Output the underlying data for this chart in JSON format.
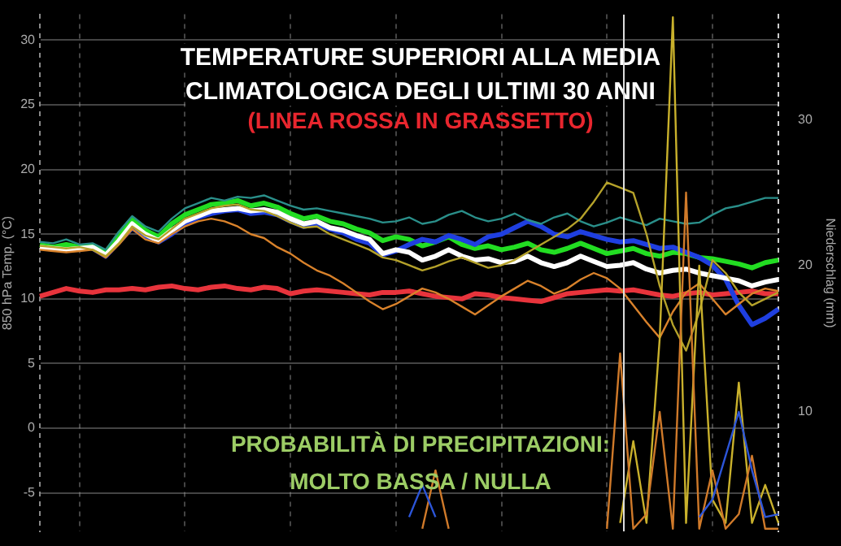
{
  "chart_data": {
    "type": "line",
    "title": "TEMPERATURE SUPERIORI ALLA MEDIA\nCLIMATOLOGICA DEGLI ULTIMI 30 ANNI",
    "subtitle": "(LINEA ROSSA IN GRASSETTO)",
    "annotations": [
      "PROBABILITÀ DI PRECIPITAZIONI:\nMOLTO BASSA / NULLA"
    ],
    "ylabel": "850 hPa Temp. (°C)",
    "y2label": "Niederschlag (mm)",
    "categories": [
      null,
      null,
      null,
      null,
      null,
      null,
      null,
      null,
      null,
      null,
      null,
      null,
      null,
      null,
      null,
      null,
      null,
      null,
      null,
      null,
      null,
      null,
      null,
      null,
      null,
      null,
      null,
      null,
      null,
      null,
      null,
      null,
      null,
      null,
      null,
      null,
      null,
      null,
      null,
      null,
      null,
      null,
      null,
      null,
      null,
      null,
      null,
      null,
      null,
      null,
      null,
      null,
      null,
      null,
      null,
      null,
      null
    ],
    "ylim": [
      -8,
      32
    ],
    "yticks": [
      -5,
      0,
      5,
      10,
      15,
      20,
      25,
      30
    ],
    "y2lim": [
      1.8,
      37.2
    ],
    "y2ticks": [
      10,
      20,
      30
    ],
    "grid": true,
    "legend": false,
    "marker": "none",
    "series": [
      {
        "color": "#e8343c",
        "values": [
          10.2,
          10.5,
          10.8,
          10.6,
          10.5,
          10.7,
          10.7,
          10.8,
          10.7,
          10.9,
          11.0,
          10.8,
          10.7,
          10.9,
          11.0,
          10.8,
          10.7,
          10.9,
          10.8,
          10.4,
          10.6,
          10.7,
          10.6,
          10.5,
          10.4,
          10.3,
          10.5,
          10.5,
          10.6,
          10.4,
          10.2,
          10.1,
          10.0,
          10.4,
          10.3,
          10.1,
          10.0,
          9.9,
          9.8,
          10.1,
          10.4,
          10.5,
          10.6,
          10.7,
          10.6,
          10.7,
          10.5,
          10.3,
          10.2,
          10.4,
          10.5,
          10.3,
          10.4,
          10.5,
          10.6,
          10.4,
          10.4
        ]
      },
      {
        "color": "#22dd22",
        "values": [
          14.2,
          14.0,
          14.2,
          14.0,
          14.1,
          13.6,
          15.0,
          16.2,
          15.3,
          14.8,
          15.8,
          16.5,
          16.9,
          17.3,
          17.4,
          17.6,
          17.2,
          17.4,
          17.1,
          16.6,
          16.2,
          16.4,
          16.0,
          15.8,
          15.4,
          15.1,
          14.5,
          14.8,
          14.6,
          14.1,
          14.4,
          14.8,
          14.2,
          13.9,
          14.1,
          13.8,
          14.0,
          14.3,
          13.8,
          13.6,
          13.9,
          14.3,
          13.9,
          13.5,
          13.7,
          13.9,
          13.5,
          13.3,
          13.6,
          13.5,
          13.2,
          13.1,
          12.9,
          12.7,
          12.4,
          12.8,
          13.0
        ]
      },
      {
        "color": "#1f3fe0",
        "values": [
          null,
          null,
          null,
          null,
          13.9,
          13.3,
          14.4,
          15.5,
          14.8,
          14.4,
          15.0,
          15.8,
          16.3,
          16.6,
          16.8,
          16.9,
          16.6,
          16.7,
          16.5,
          16.0,
          15.6,
          15.8,
          15.4,
          15.1,
          14.6,
          14.3,
          13.4,
          13.7,
          14.2,
          14.6,
          14.4,
          14.9,
          14.6,
          14.2,
          14.8,
          15.0,
          15.5,
          16.0,
          15.6,
          15.0,
          14.8,
          15.2,
          14.9,
          14.6,
          14.4,
          14.5,
          14.2,
          13.9,
          14.0,
          13.6,
          13.2,
          12.6,
          11.5,
          9.5,
          8.0,
          8.5,
          9.2
        ]
      },
      {
        "color": "#ffffff",
        "values": [
          14.0,
          13.9,
          13.8,
          13.9,
          14.0,
          13.4,
          14.5,
          15.8,
          15.0,
          14.5,
          15.3,
          16.0,
          16.4,
          16.8,
          16.9,
          17.0,
          16.8,
          16.9,
          16.7,
          16.2,
          15.8,
          16.0,
          15.5,
          15.3,
          14.9,
          14.6,
          13.5,
          13.8,
          13.6,
          13.0,
          13.3,
          13.8,
          13.3,
          13.0,
          13.1,
          12.8,
          12.9,
          13.3,
          12.8,
          12.5,
          12.8,
          13.3,
          12.9,
          12.5,
          12.6,
          12.8,
          12.3,
          12.0,
          12.2,
          12.3,
          12.0,
          11.8,
          11.6,
          11.4,
          11.0,
          11.3,
          11.5
        ]
      },
      {
        "color": "#d9822b",
        "values": [
          13.8,
          13.7,
          13.6,
          13.7,
          13.8,
          13.2,
          14.2,
          15.4,
          14.6,
          14.3,
          15.0,
          15.6,
          16.0,
          16.2,
          16.0,
          15.6,
          15.0,
          14.7,
          14.0,
          13.5,
          12.8,
          12.2,
          11.8,
          11.2,
          10.5,
          9.8,
          9.2,
          9.6,
          10.2,
          10.8,
          10.5,
          10.0,
          9.4,
          8.8,
          9.5,
          10.2,
          10.8,
          11.4,
          11.0,
          10.4,
          10.8,
          11.5,
          12.0,
          11.6,
          10.8,
          9.5,
          8.2,
          7.0,
          9.0,
          10.5,
          11.2,
          10.0,
          8.8,
          9.6,
          10.4,
          10.8,
          10.6
        ]
      },
      {
        "color": "#2a8f8a",
        "values": [
          14.4,
          14.3,
          14.6,
          14.2,
          14.3,
          13.8,
          15.2,
          16.4,
          15.6,
          15.2,
          16.2,
          17.0,
          17.4,
          17.8,
          17.6,
          17.9,
          17.8,
          18.0,
          17.6,
          17.2,
          16.9,
          17.0,
          16.8,
          16.6,
          16.4,
          16.2,
          15.9,
          16.0,
          16.3,
          15.8,
          16.0,
          16.5,
          16.8,
          16.3,
          16.0,
          16.2,
          16.6,
          16.1,
          15.8,
          16.3,
          16.6,
          16.0,
          15.6,
          15.9,
          16.3,
          16.0,
          15.7,
          16.2,
          16.0,
          15.8,
          15.9,
          16.5,
          17.0,
          17.2,
          17.5,
          17.8,
          17.8
        ]
      },
      {
        "color": "#b5a22a",
        "values": [
          14.1,
          14.0,
          13.9,
          14.0,
          13.8,
          13.3,
          14.3,
          15.6,
          14.9,
          14.6,
          15.4,
          16.2,
          16.6,
          17.0,
          17.2,
          17.3,
          16.9,
          16.8,
          16.4,
          15.9,
          15.5,
          15.6,
          15.0,
          14.6,
          14.2,
          13.8,
          13.2,
          13.0,
          12.6,
          12.2,
          12.5,
          12.9,
          13.2,
          12.8,
          12.4,
          12.6,
          13.0,
          13.6,
          14.2,
          14.8,
          15.4,
          16.2,
          17.5,
          19.0,
          18.6,
          18.2,
          15.0,
          11.0,
          8.0,
          6.0,
          9.0,
          13.0,
          12.0,
          10.5,
          9.5,
          10.0,
          10.5
        ]
      },
      {
        "axis": "y2",
        "color": "#c9b12c",
        "values": [
          null,
          null,
          null,
          null,
          null,
          null,
          null,
          null,
          null,
          null,
          null,
          null,
          null,
          null,
          null,
          null,
          null,
          null,
          null,
          null,
          null,
          null,
          null,
          null,
          null,
          null,
          null,
          null,
          null,
          null,
          null,
          null,
          null,
          null,
          null,
          null,
          null,
          null,
          null,
          null,
          null,
          null,
          null,
          null,
          2.4,
          8,
          2.4,
          15,
          37,
          2.4,
          20,
          4,
          2.4,
          12,
          2.4,
          5,
          2.4
        ]
      },
      {
        "axis": "y2",
        "color": "#d07a2a",
        "values": [
          null,
          null,
          null,
          null,
          null,
          null,
          null,
          null,
          null,
          null,
          null,
          null,
          null,
          null,
          null,
          null,
          null,
          null,
          null,
          null,
          null,
          null,
          null,
          null,
          null,
          null,
          null,
          null,
          null,
          2,
          6,
          2,
          null,
          null,
          null,
          null,
          null,
          null,
          null,
          null,
          null,
          null,
          null,
          2,
          14,
          2,
          3,
          10,
          2,
          25,
          2,
          6,
          2,
          3,
          7,
          2,
          2
        ]
      },
      {
        "axis": "y2",
        "color": "#2c55d8",
        "values": [
          null,
          null,
          null,
          null,
          null,
          null,
          null,
          null,
          null,
          null,
          null,
          null,
          null,
          null,
          null,
          null,
          null,
          null,
          null,
          null,
          null,
          null,
          null,
          null,
          null,
          null,
          null,
          null,
          2.8,
          5,
          2.8,
          null,
          null,
          null,
          null,
          null,
          null,
          null,
          null,
          null,
          null,
          null,
          null,
          null,
          null,
          null,
          null,
          null,
          null,
          null,
          2.8,
          4,
          7,
          10,
          6,
          2.8,
          3
        ]
      }
    ]
  }
}
